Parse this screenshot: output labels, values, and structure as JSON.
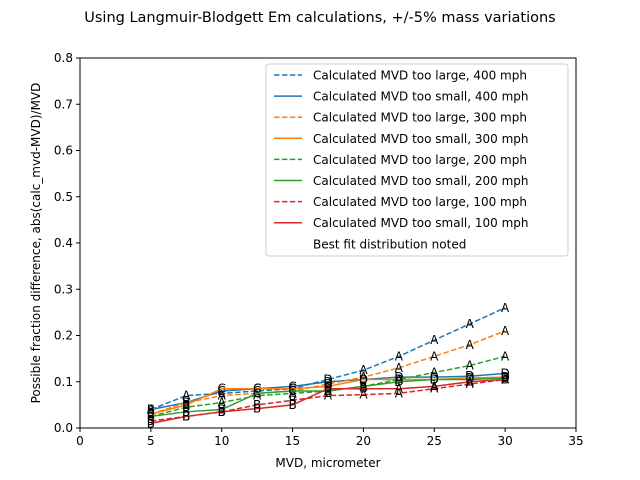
{
  "chart_data": {
    "type": "line",
    "title": "Using Langmuir-Blodgett Em calculations, +/-5% mass variations",
    "xlabel": "MVD, micrometer",
    "ylabel": "Possible fraction difference, abs(calc_mvd-MVD)/MVD",
    "xlim": [
      0,
      35
    ],
    "ylim": [
      0,
      0.8
    ],
    "xticks": [
      "0",
      "5",
      "10",
      "15",
      "20",
      "25",
      "30",
      "35"
    ],
    "yticks": [
      "0.0",
      "0.1",
      "0.2",
      "0.3",
      "0.4",
      "0.5",
      "0.6",
      "0.7",
      "0.8"
    ],
    "grid": false,
    "legend_position": "top-right",
    "x": [
      5,
      7.5,
      10,
      12.5,
      15,
      17.5,
      20,
      22.5,
      25,
      27.5,
      30
    ],
    "series": [
      {
        "name": "Calculated MVD too large, 400 mph",
        "color": "#1f77b4",
        "dash": true,
        "values": [
          0.04,
          0.07,
          0.075,
          0.08,
          0.085,
          0.105,
          0.125,
          0.155,
          0.19,
          0.225,
          0.26
        ],
        "markers": [
          "A",
          "A",
          "C",
          "C",
          "C",
          "D",
          "A",
          "A",
          "A",
          "A",
          "A"
        ]
      },
      {
        "name": "Calculated MVD too small, 400 mph",
        "color": "#1f77b4",
        "dash": false,
        "values": [
          0.04,
          0.055,
          0.08,
          0.085,
          0.09,
          0.1,
          0.105,
          0.11,
          0.11,
          0.112,
          0.118
        ],
        "markers": [
          "B",
          "B",
          "C",
          "C",
          "C",
          "D",
          "D",
          "D",
          "D",
          "D",
          "D"
        ]
      },
      {
        "name": "Calculated MVD too large, 300 mph",
        "color": "#ff7f0e",
        "dash": true,
        "values": [
          0.03,
          0.055,
          0.07,
          0.075,
          0.08,
          0.095,
          0.11,
          0.13,
          0.155,
          0.18,
          0.21
        ],
        "markers": [
          "B",
          "B",
          "A",
          "C",
          "C",
          "D",
          "A",
          "A",
          "A",
          "A",
          "A"
        ]
      },
      {
        "name": "Calculated MVD too small, 300 mph",
        "color": "#ff7f0e",
        "dash": false,
        "values": [
          0.03,
          0.05,
          0.085,
          0.085,
          0.085,
          0.09,
          0.105,
          0.105,
          0.105,
          0.108,
          0.11
        ],
        "markers": [
          "B",
          "B",
          "C",
          "C",
          "C",
          "D",
          "D",
          "D",
          "D",
          "D",
          "D"
        ]
      },
      {
        "name": "Calculated MVD too large, 200 mph",
        "color": "#2ca02c",
        "dash": true,
        "values": [
          0.025,
          0.045,
          0.055,
          0.07,
          0.075,
          0.08,
          0.09,
          0.105,
          0.12,
          0.135,
          0.155
        ],
        "markers": [
          "B",
          "B",
          "A",
          "A",
          "A",
          "A",
          "A",
          "A",
          "A",
          "A",
          "A"
        ]
      },
      {
        "name": "Calculated MVD too small, 200 mph",
        "color": "#2ca02c",
        "dash": false,
        "values": [
          0.025,
          0.035,
          0.04,
          0.075,
          0.08,
          0.08,
          0.09,
          0.1,
          0.105,
          0.105,
          0.108
        ],
        "markers": [
          "B",
          "B",
          "B",
          "C",
          "C",
          "B",
          "B",
          "D",
          "D",
          "D",
          "D"
        ]
      },
      {
        "name": "Calculated MVD too large, 100 mph",
        "color": "#d62728",
        "dash": true,
        "values": [
          0.015,
          0.025,
          0.035,
          0.05,
          0.06,
          0.07,
          0.072,
          0.075,
          0.085,
          0.095,
          0.105
        ],
        "markers": [
          "B",
          "B",
          "B",
          "B",
          "B",
          "A",
          "A",
          "A",
          "A",
          "A",
          "A"
        ]
      },
      {
        "name": "Calculated MVD too small, 100 mph",
        "color": "#d62728",
        "dash": false,
        "values": [
          0.01,
          0.025,
          0.035,
          0.042,
          0.05,
          0.085,
          0.085,
          0.085,
          0.09,
          0.1,
          0.105
        ],
        "markers": [
          "B",
          "B",
          "B",
          "B",
          "B",
          "B",
          "B",
          "A",
          "A",
          "A",
          "B"
        ]
      }
    ],
    "legend_note": "Best fit distribution noted"
  }
}
